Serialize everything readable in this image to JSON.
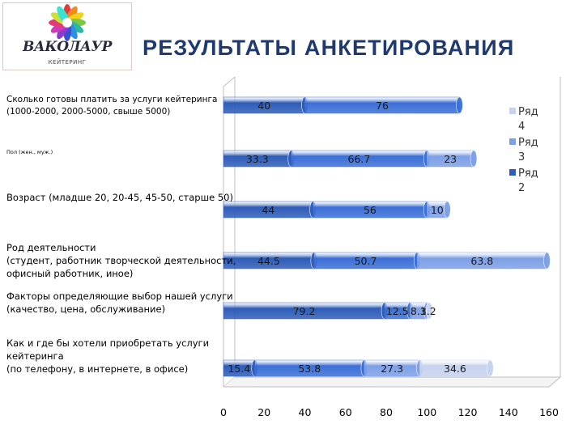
{
  "header": {
    "title": "РЕЗУЛЬТАТЫ АНКЕТИРОВАНИЯ",
    "logo_text": "ВАКОЛАУР",
    "logo_subtext": "КЕЙТЕРИНГ"
  },
  "chart_data": {
    "type": "bar",
    "orientation": "horizontal",
    "stacked": true,
    "style": "3d-cylinder",
    "categories": [
      [
        "Как и где бы хотели приобретать услуги",
        "кейтеринга",
        "(по телефону, в интернете, в офисе)"
      ],
      [
        "Факторы определяющие выбор нашей услуги",
        "(качество, цена, обслуживание)"
      ],
      [
        "Род деятельности",
        "(студент, работник творческой деятельности,",
        " офисный работник, иное)"
      ],
      [
        "Возраст (младше 20, 20-45, 45-50, старше 50)"
      ],
      [
        "Пол (жен., муж.)"
      ],
      [
        "Сколько готовы платить за услуги кейтеринга",
        " (1000-2000, 2000-5000, свыше 5000)"
      ]
    ],
    "segments": [
      [
        15.4,
        53.8,
        27.3,
        34.6
      ],
      [
        79.2,
        12.5,
        8.3,
        1.2
      ],
      [
        44.5,
        50.7,
        63.8
      ],
      [
        44,
        56,
        10
      ],
      [
        33.3,
        66.7,
        23
      ],
      [
        40,
        76
      ]
    ],
    "segment_labels": [
      [
        "15.4",
        "53.8",
        "27.3",
        "34.6"
      ],
      [
        "79.2",
        "12.5",
        "8.3",
        "1.2"
      ],
      [
        "44.5",
        "50.7",
        "63.8"
      ],
      [
        "44",
        "56",
        "10"
      ],
      [
        "33.3",
        "66.7",
        "23"
      ],
      [
        "40",
        "76"
      ]
    ],
    "series_colors": [
      "#2e5cb8",
      "#3b6fd6",
      "#7d9fe6",
      "#c7d2ee"
    ],
    "legend": {
      "entries": [
        {
          "name": "Ряд 4",
          "color": "#c7d2ee"
        },
        {
          "name": "Ряд 3",
          "color": "#7d9fe6"
        },
        {
          "name": "Ряд 2",
          "color": "#2e5cb8"
        }
      ],
      "placement": "right"
    },
    "xlim": [
      0,
      160
    ],
    "xticks": [
      "0",
      "20",
      "40",
      "60",
      "80",
      "100",
      "120",
      "140",
      "160"
    ],
    "grid": false
  }
}
